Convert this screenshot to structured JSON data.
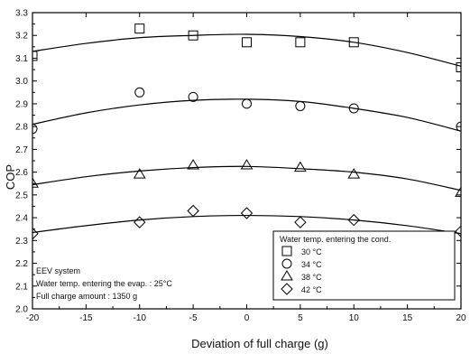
{
  "chart_data": {
    "type": "scatter",
    "xlabel": "Deviation of full charge (g)",
    "ylabel": "COP",
    "xlim": [
      -20,
      20
    ],
    "ylim": [
      2.0,
      3.3
    ],
    "x_ticks": [
      -20,
      -15,
      -10,
      -5,
      0,
      5,
      10,
      15,
      20
    ],
    "x_tick_labels": [
      "-20",
      "-15",
      "-10",
      "-5",
      "0",
      "5",
      "10",
      "15",
      "20"
    ],
    "y_ticks": [
      2.0,
      2.1,
      2.2,
      2.3,
      2.4,
      2.5,
      2.6,
      2.7,
      2.8,
      2.9,
      3.0,
      3.1,
      3.2,
      3.3
    ],
    "y_tick_labels": [
      "2.0",
      "2.1",
      "2.2",
      "2.3",
      "2.4",
      "2.5",
      "2.6",
      "2.7",
      "2.8",
      "2.9",
      "3.0",
      "3.1",
      "3.2",
      "3.3"
    ],
    "grid": false,
    "legend_position": "bottom-right",
    "legend_title": "Water temp. entering the cond.",
    "annotations": [
      "EEV system",
      "Water temp. entering the evap. : 25°C",
      "Full charge amount : 1350 g"
    ],
    "series": [
      {
        "name": "30 °C",
        "marker": "square",
        "x": [
          -20,
          -10,
          -5,
          0,
          5,
          10,
          20
        ],
        "y": [
          3.11,
          3.23,
          3.2,
          3.17,
          3.17,
          3.17,
          3.06
        ],
        "fit_x": [
          -20,
          -15,
          -10,
          -5,
          0,
          5,
          10,
          15,
          20
        ],
        "fit_y": [
          3.13,
          3.165,
          3.19,
          3.2,
          3.205,
          3.195,
          3.17,
          3.125,
          3.065
        ]
      },
      {
        "name": "34 °C",
        "marker": "circle",
        "x": [
          -20,
          -10,
          -5,
          0,
          5,
          10,
          20
        ],
        "y": [
          2.79,
          2.95,
          2.93,
          2.9,
          2.89,
          2.88,
          2.8
        ],
        "fit_x": [
          -20,
          -15,
          -10,
          -5,
          0,
          5,
          10,
          15,
          20
        ],
        "fit_y": [
          2.81,
          2.86,
          2.895,
          2.915,
          2.92,
          2.91,
          2.88,
          2.84,
          2.78
        ]
      },
      {
        "name": "38 °C",
        "marker": "triangle",
        "x": [
          -20,
          -10,
          -5,
          0,
          5,
          10,
          20
        ],
        "y": [
          2.55,
          2.59,
          2.63,
          2.63,
          2.62,
          2.59,
          2.51
        ],
        "fit_x": [
          -20,
          -15,
          -10,
          -5,
          0,
          5,
          10,
          15,
          20
        ],
        "fit_y": [
          2.545,
          2.58,
          2.605,
          2.62,
          2.625,
          2.615,
          2.6,
          2.57,
          2.52
        ]
      },
      {
        "name": "42 °C",
        "marker": "diamond",
        "x": [
          -20,
          -10,
          -5,
          0,
          5,
          10,
          20
        ],
        "y": [
          2.33,
          2.38,
          2.43,
          2.42,
          2.38,
          2.39,
          2.34
        ],
        "fit_x": [
          -20,
          -15,
          -10,
          -5,
          0,
          5,
          10,
          15,
          20
        ],
        "fit_y": [
          2.335,
          2.365,
          2.39,
          2.405,
          2.41,
          2.405,
          2.39,
          2.365,
          2.33
        ]
      }
    ]
  }
}
